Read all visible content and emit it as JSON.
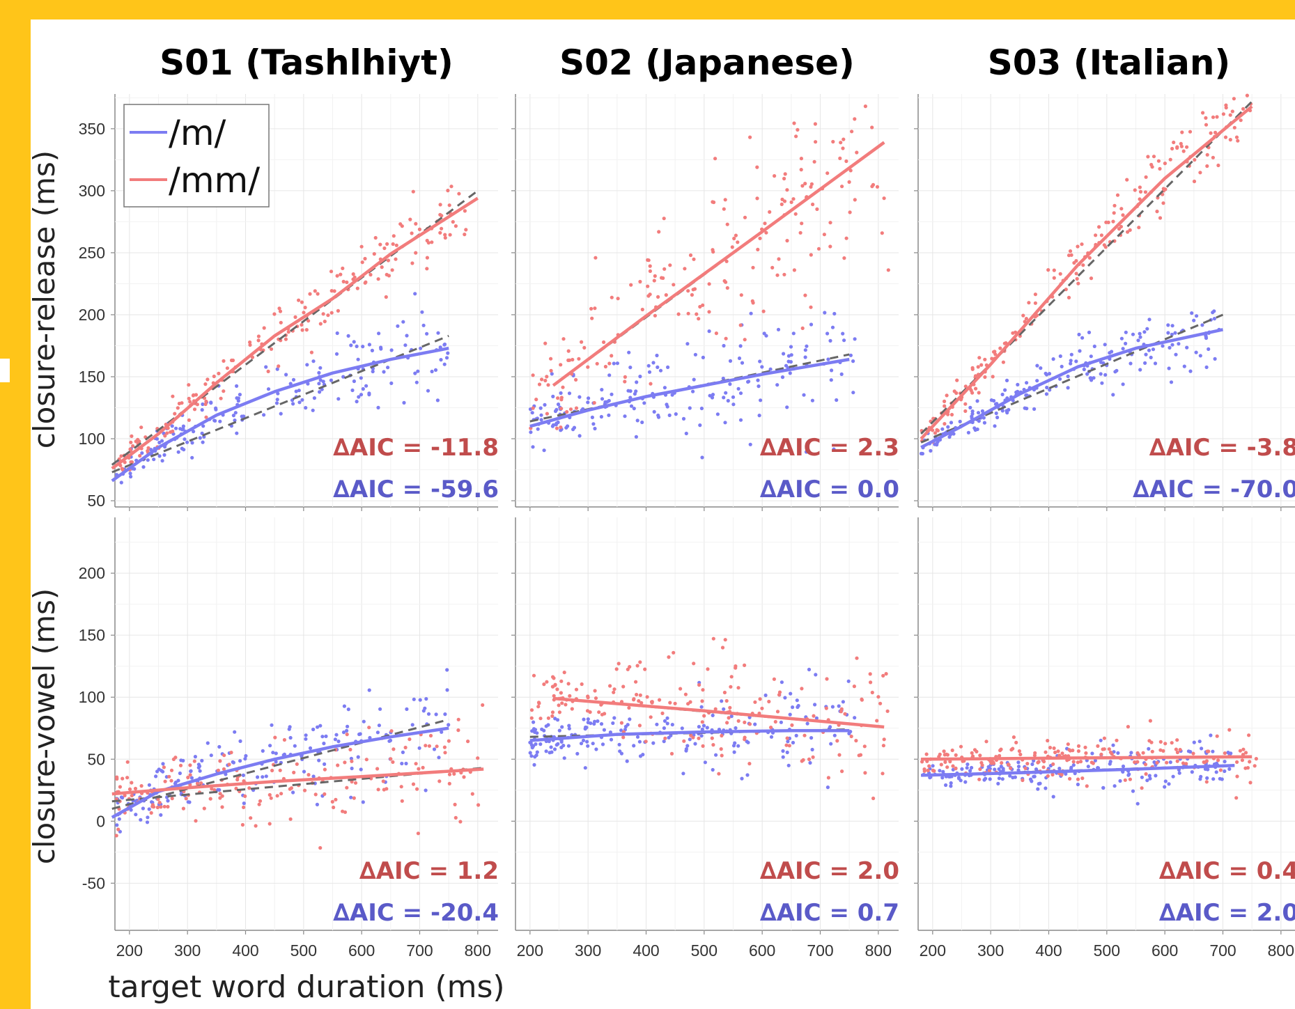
{
  "colors": {
    "m": "#7C7CF2",
    "mm": "#F27C7C",
    "m_text": "#5A5AC8",
    "mm_text": "#C04C4C",
    "linear": "#666666"
  },
  "chart_data": {
    "type": "scatter",
    "panels_title": [
      "S01 (Tashlhiyt)",
      "S02 (Japanese)",
      "S03 (Italian)"
    ],
    "ylabel_top": "closure-release (ms)",
    "ylabel_bottom": "closure-vowel (ms)",
    "xlabel": "target word duration (ms)",
    "xticks": [
      "200",
      "300",
      "400",
      "500",
      "600",
      "700",
      "800"
    ],
    "yticks_top": [
      "50",
      "100",
      "150",
      "200",
      "250",
      "300",
      "350"
    ],
    "yticks_bottom": [
      "-50",
      "0",
      "50",
      "100",
      "150",
      "200"
    ],
    "xlim": [
      175,
      835
    ],
    "ylim_top": [
      45,
      378
    ],
    "ylim_bottom": [
      -88,
      245
    ],
    "grid": true,
    "legend": {
      "placement": "top-left",
      "entries": [
        "/m/",
        "/mm/"
      ]
    },
    "panels": [
      {
        "row": 0,
        "col": 0,
        "aic_mm": "∆AIC = -11.8",
        "aic_m": "∆AIC = -59.6",
        "fit_m": [
          [
            170,
            66
          ],
          [
            250,
            93
          ],
          [
            350,
            119
          ],
          [
            450,
            138
          ],
          [
            550,
            153
          ],
          [
            650,
            164
          ],
          [
            750,
            173
          ]
        ],
        "fit_mm": [
          [
            170,
            76
          ],
          [
            250,
            104
          ],
          [
            350,
            145
          ],
          [
            450,
            183
          ],
          [
            550,
            213
          ],
          [
            650,
            249
          ],
          [
            800,
            294
          ]
        ],
        "linear_m": [
          [
            170,
            73
          ],
          [
            750,
            183
          ]
        ],
        "linear_mm": [
          [
            170,
            79
          ],
          [
            800,
            300
          ]
        ],
        "cloud_m": {
          "x": [
            170,
            750
          ],
          "y0": 66,
          "y1": 173,
          "spread": 14,
          "n": 200,
          "curv": 0.35
        },
        "cloud_mm": {
          "x": [
            170,
            800
          ],
          "y0": 76,
          "y1": 294,
          "spread": 12,
          "n": 200,
          "curv": 0.2
        }
      },
      {
        "row": 0,
        "col": 1,
        "aic_mm": "∆AIC = 2.3",
        "aic_m": "∆AIC = 0.0",
        "fit_m": [
          [
            200,
            110
          ],
          [
            300,
            123
          ],
          [
            400,
            134
          ],
          [
            500,
            143
          ],
          [
            600,
            152
          ],
          [
            750,
            164
          ]
        ],
        "fit_mm": [
          [
            240,
            143
          ],
          [
            400,
            199
          ],
          [
            600,
            267
          ],
          [
            810,
            339
          ]
        ],
        "linear_m": [
          [
            200,
            114
          ],
          [
            750,
            168
          ]
        ],
        "linear_mm": [
          [
            240,
            143
          ],
          [
            810,
            339
          ]
        ],
        "cloud_m": {
          "x": [
            200,
            760
          ],
          "y0": 110,
          "y1": 164,
          "spread": 22,
          "n": 200,
          "curv": 0.2
        },
        "cloud_mm": {
          "x": [
            200,
            820
          ],
          "y0": 143,
          "y1": 339,
          "spread": 38,
          "n": 200,
          "curv": 0
        }
      },
      {
        "row": 0,
        "col": 2,
        "aic_mm": "∆AIC = -3.8",
        "aic_m": "∆AIC = -70.0",
        "fit_m": [
          [
            180,
            93
          ],
          [
            250,
            110
          ],
          [
            350,
            136
          ],
          [
            450,
            158
          ],
          [
            550,
            173
          ],
          [
            700,
            188
          ]
        ],
        "fit_mm": [
          [
            180,
            100
          ],
          [
            300,
            160
          ],
          [
            450,
            240
          ],
          [
            600,
            310
          ],
          [
            750,
            368
          ]
        ],
        "linear_m": [
          [
            180,
            97
          ],
          [
            700,
            200
          ]
        ],
        "linear_mm": [
          [
            180,
            104
          ],
          [
            750,
            372
          ]
        ],
        "cloud_m": {
          "x": [
            180,
            700
          ],
          "y0": 93,
          "y1": 188,
          "spread": 11,
          "n": 200,
          "curv": 0.3
        },
        "cloud_mm": {
          "x": [
            180,
            750
          ],
          "y0": 100,
          "y1": 368,
          "spread": 13,
          "n": 200,
          "curv": 0
        }
      },
      {
        "row": 1,
        "col": 0,
        "aic_mm": "∆AIC = 1.2",
        "aic_m": "∆AIC = -20.4",
        "fit_m": [
          [
            170,
            3
          ],
          [
            250,
            24
          ],
          [
            350,
            38
          ],
          [
            450,
            50
          ],
          [
            550,
            60
          ],
          [
            650,
            68
          ],
          [
            750,
            75
          ]
        ],
        "fit_mm": [
          [
            170,
            22
          ],
          [
            300,
            27
          ],
          [
            450,
            32
          ],
          [
            600,
            36
          ],
          [
            810,
            42
          ]
        ],
        "linear_m": [
          [
            170,
            10
          ],
          [
            750,
            82
          ]
        ],
        "linear_mm": [
          [
            170,
            16
          ],
          [
            810,
            43
          ]
        ],
        "cloud_m": {
          "x": [
            170,
            750
          ],
          "y0": 3,
          "y1": 75,
          "spread": 17,
          "n": 200,
          "curv": 0.35
        },
        "cloud_mm": {
          "x": [
            170,
            810
          ],
          "y0": 22,
          "y1": 42,
          "spread": 20,
          "n": 200,
          "curv": 0.3
        }
      },
      {
        "row": 1,
        "col": 1,
        "aic_mm": "∆AIC = 2.0",
        "aic_m": "∆AIC = 0.7",
        "fit_m": [
          [
            200,
            65
          ],
          [
            350,
            70
          ],
          [
            500,
            72
          ],
          [
            650,
            73
          ],
          [
            750,
            73
          ]
        ],
        "fit_mm": [
          [
            240,
            99
          ],
          [
            500,
            89
          ],
          [
            810,
            76
          ]
        ],
        "linear_m": [
          [
            200,
            68
          ],
          [
            750,
            74
          ]
        ],
        "linear_mm": [
          [
            240,
            99
          ],
          [
            810,
            76
          ]
        ],
        "cloud_m": {
          "x": [
            200,
            760
          ],
          "y0": 65,
          "y1": 73,
          "spread": 16,
          "n": 200,
          "curv": 0.3
        },
        "cloud_mm": {
          "x": [
            200,
            820
          ],
          "y0": 99,
          "y1": 76,
          "spread": 26,
          "n": 200,
          "curv": 0
        }
      },
      {
        "row": 1,
        "col": 2,
        "aic_mm": "∆AIC = 0.4",
        "aic_m": "∆AIC = 2.0",
        "fit_m": [
          [
            180,
            37
          ],
          [
            350,
            39
          ],
          [
            550,
            42
          ],
          [
            720,
            45
          ]
        ],
        "fit_mm": [
          [
            180,
            50
          ],
          [
            450,
            51
          ],
          [
            750,
            52
          ]
        ],
        "linear_m": [
          [
            180,
            37
          ],
          [
            720,
            45
          ]
        ],
        "linear_mm": [
          [
            180,
            50
          ],
          [
            750,
            52
          ]
        ],
        "cloud_m": {
          "x": [
            180,
            720
          ],
          "y0": 37,
          "y1": 45,
          "spread": 8,
          "n": 200,
          "curv": 0
        },
        "cloud_mm": {
          "x": [
            180,
            760
          ],
          "y0": 50,
          "y1": 52,
          "spread": 10,
          "n": 200,
          "curv": 0
        }
      }
    ]
  }
}
